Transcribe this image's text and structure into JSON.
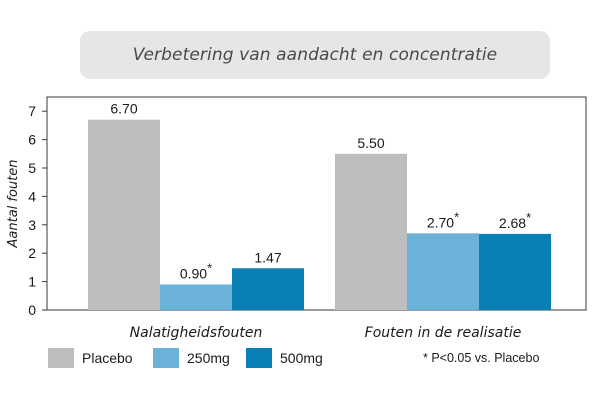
{
  "title": "Verbetering van aandacht en concentratie",
  "footnote": "* P<0.05 vs. Placebo",
  "colors": {
    "placebo": "#bcbec0",
    "mg250": "#6ab2d8",
    "mg500": "#0a7fb3",
    "axis": "#3a3a3a",
    "label_text": "#1a1a1a"
  },
  "chart_data": {
    "type": "bar",
    "title": "Verbetering van aandacht en concentratie",
    "ylabel": "Aantal fouten",
    "xlabel": "",
    "ylim": [
      0,
      7.5
    ],
    "yticks": [
      0,
      1,
      2,
      3,
      4,
      5,
      6,
      7
    ],
    "grid": false,
    "legend_position": "bottom",
    "categories": [
      "Nalatigheidsfouten",
      "Fouten in de realisatie"
    ],
    "series": [
      {
        "name": "Placebo",
        "values": [
          6.7,
          5.5
        ],
        "labels": [
          "6.70",
          "5.50"
        ],
        "color": "#bcbec0"
      },
      {
        "name": "250mg",
        "values": [
          0.9,
          2.7
        ],
        "labels": [
          "0.90*",
          "2.70*"
        ],
        "color": "#6ab2d8"
      },
      {
        "name": "500mg",
        "values": [
          1.47,
          2.68
        ],
        "labels": [
          "1.47",
          "2.68*"
        ],
        "color": "#0a7fb3"
      }
    ]
  }
}
